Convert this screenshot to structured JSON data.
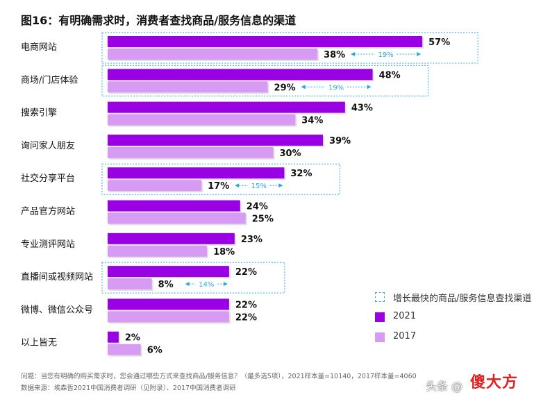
{
  "title": "图16：有明确需求时，消费者查找商品/服务信息的渠道",
  "colors": {
    "series_2021": "#9a00e4",
    "series_2017": "#d89bf3",
    "highlight_box": "#29a9e0",
    "growth_text": "#29a9e0"
  },
  "legend": {
    "highlight": "增长最快的商品/服务信息查找渠道",
    "s2021": "2021",
    "s2017": "2017"
  },
  "chart_data": {
    "type": "bar",
    "orientation": "horizontal",
    "categories": [
      "电商网站",
      "商场/门店体验",
      "搜索引擎",
      "询问家人朋友",
      "社交分享平台",
      "产品官方网站",
      "专业测评网站",
      "直播间或视频网站",
      "微博、微信公众号",
      "以上皆无"
    ],
    "series": [
      {
        "name": "2021",
        "values": [
          57,
          48,
          43,
          39,
          32,
          24,
          23,
          22,
          22,
          2
        ],
        "labels": [
          "57%",
          "48%",
          "43%",
          "39%",
          "32%",
          "24%",
          "23%",
          "22%",
          "22%",
          "2%"
        ]
      },
      {
        "name": "2017",
        "values": [
          38,
          29,
          34,
          30,
          17,
          25,
          18,
          8,
          22,
          6
        ],
        "labels": [
          "38%",
          "29%",
          "34%",
          "30%",
          "17%",
          "25%",
          "18%",
          "8%",
          "22%",
          "6%"
        ]
      }
    ],
    "highlights": [
      {
        "category": "电商网站",
        "growth": "19%"
      },
      {
        "category": "商场/门店体验",
        "growth": "19%"
      },
      {
        "category": "社交分享平台",
        "growth": "15%"
      },
      {
        "category": "直播间或视频网站",
        "growth": "14%"
      }
    ],
    "unit": "%",
    "xlim": [
      0,
      57
    ]
  },
  "footnotes": [
    "问题：当您有明确的购买需求时，您会通过哪些方式来查找商品/服务信息？（最多选5项），2021样本量=10140，2017样本量=4060",
    "数据来源：埃森哲2021中国消费者调研（见附录）、2017中国消费者调研"
  ],
  "watermark": {
    "prefix": "头条 @",
    "brand": "傻大方"
  }
}
